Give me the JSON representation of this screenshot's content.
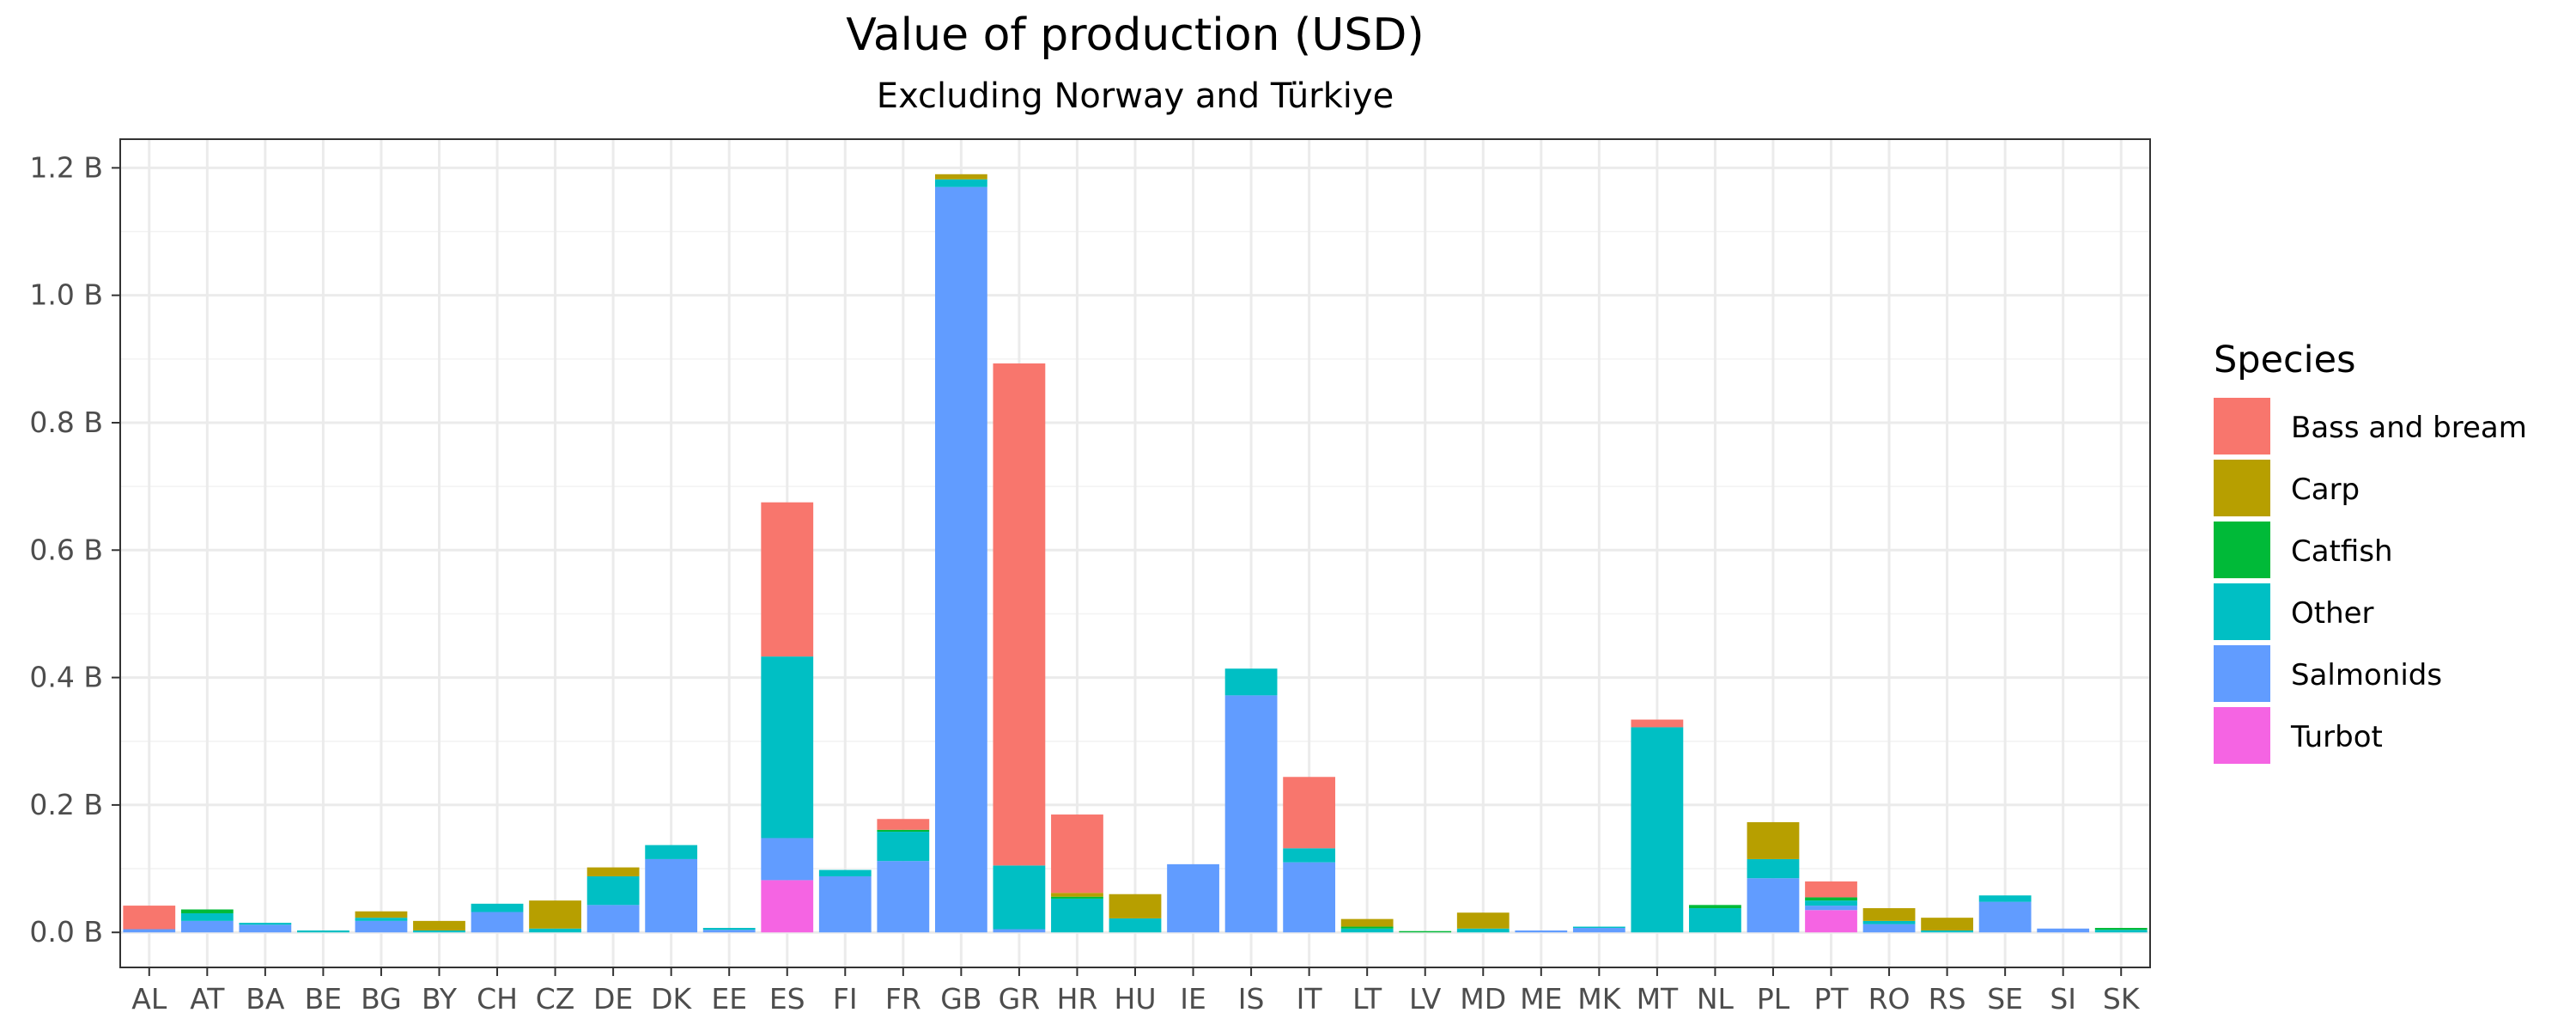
{
  "chart_data": {
    "type": "bar",
    "stacked": true,
    "title": "Value of production (USD)",
    "subtitle": "Excluding Norway and Türkiye",
    "xlabel": "",
    "ylabel": "",
    "ylim": [
      -0.055,
      1.245
    ],
    "y_ticks": [
      0.0,
      0.2,
      0.4,
      0.6,
      0.8,
      1.0,
      1.2
    ],
    "y_tick_labels": [
      "0.0 B",
      "0.2 B",
      "0.4 B",
      "0.6 B",
      "0.8 B",
      "1.0 B",
      "1.2 B"
    ],
    "grid": true,
    "legend_position": "right",
    "legend_title": "Species",
    "categories": [
      "AL",
      "AT",
      "BA",
      "BE",
      "BG",
      "BY",
      "CH",
      "CZ",
      "DE",
      "DK",
      "EE",
      "ES",
      "FI",
      "FR",
      "GB",
      "GR",
      "HR",
      "HU",
      "IE",
      "IS",
      "IT",
      "LT",
      "LV",
      "MD",
      "ME",
      "MK",
      "MT",
      "NL",
      "PL",
      "PT",
      "RO",
      "RS",
      "SE",
      "SI",
      "SK"
    ],
    "series": [
      {
        "name": "Turbot",
        "color": "#F564E3",
        "values": [
          0,
          0,
          0,
          0,
          0,
          0,
          0,
          0,
          0,
          0,
          0,
          0.082,
          0,
          0,
          0,
          0,
          0,
          0,
          0,
          0,
          0,
          0,
          0,
          0,
          0,
          0,
          0,
          0,
          0,
          0.035,
          0,
          0,
          0,
          0,
          0
        ]
      },
      {
        "name": "Salmonids",
        "color": "#619CFF",
        "values": [
          0.005,
          0.018,
          0.012,
          0,
          0.018,
          0,
          0.032,
          0,
          0.043,
          0.115,
          0.004,
          0.066,
          0.088,
          0.112,
          1.17,
          0.005,
          0,
          0,
          0.107,
          0.372,
          0.11,
          0,
          0,
          0,
          0.003,
          0.007,
          0,
          0,
          0.085,
          0.007,
          0.013,
          0,
          0.048,
          0.006,
          0
        ]
      },
      {
        "name": "Other",
        "color": "#00BFC4",
        "values": [
          0,
          0.012,
          0.003,
          0.003,
          0.005,
          0.003,
          0.013,
          0.006,
          0.045,
          0.022,
          0.003,
          0.285,
          0.01,
          0.046,
          0.012,
          0.1,
          0.053,
          0.022,
          0,
          0.042,
          0.022,
          0.006,
          0,
          0.006,
          0,
          0.002,
          0.322,
          0.038,
          0.03,
          0.008,
          0.005,
          0.003,
          0.01,
          0,
          0.004
        ]
      },
      {
        "name": "Catfish",
        "color": "#00BA38",
        "values": [
          0,
          0.006,
          0,
          0,
          0,
          0,
          0,
          0,
          0,
          0,
          0,
          0,
          0,
          0.003,
          0,
          0,
          0.003,
          0,
          0,
          0,
          0,
          0.003,
          0.002,
          0,
          0,
          0,
          0,
          0.005,
          0,
          0.005,
          0,
          0,
          0,
          0,
          0.003
        ]
      },
      {
        "name": "Carp",
        "color": "#B79F00",
        "values": [
          0,
          0,
          0,
          0,
          0.01,
          0.015,
          0,
          0.044,
          0.014,
          0,
          0,
          0,
          0,
          0,
          0.008,
          0,
          0.006,
          0.038,
          0,
          0,
          0,
          0.012,
          0,
          0.025,
          0,
          0,
          0,
          0,
          0.058,
          0,
          0.02,
          0.02,
          0,
          0,
          0
        ]
      },
      {
        "name": "Bass and bream",
        "color": "#F8766D",
        "values": [
          0.037,
          0,
          0,
          0,
          0,
          0,
          0,
          0,
          0,
          0,
          0,
          0.242,
          0,
          0.017,
          0,
          0.788,
          0.123,
          0,
          0,
          0,
          0.112,
          0,
          0,
          0,
          0,
          0,
          0.012,
          0,
          0,
          0.025,
          0,
          0,
          0,
          0,
          0
        ]
      }
    ],
    "legend_order": [
      "Bass and bream",
      "Carp",
      "Catfish",
      "Other",
      "Salmonids",
      "Turbot"
    ]
  }
}
